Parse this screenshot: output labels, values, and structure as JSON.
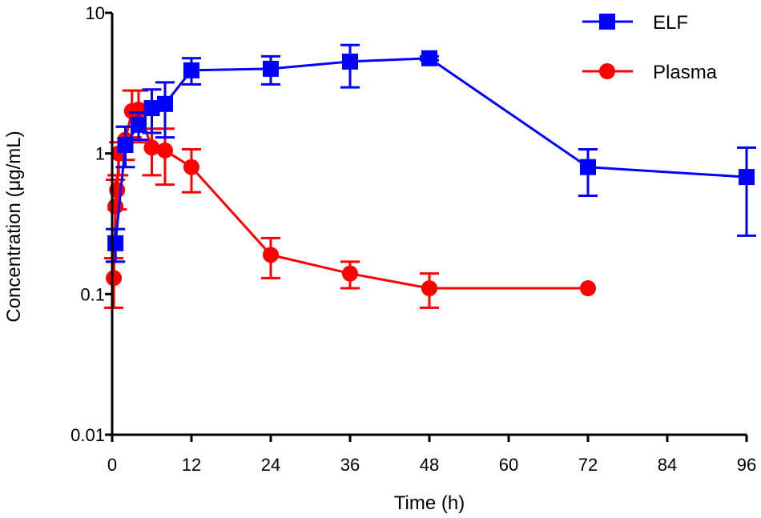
{
  "chart_data": {
    "type": "line",
    "title": "",
    "xlabel": "Time (h)",
    "ylabel": "Concentration (μg/mL)",
    "yscale": "log",
    "xlim": [
      0,
      96
    ],
    "ylim": [
      0.01,
      10
    ],
    "x_ticks": [
      0,
      12,
      24,
      36,
      48,
      60,
      72,
      84,
      96
    ],
    "x_tick_labels": [
      "0",
      "12",
      "24",
      "36",
      "48",
      "60",
      "72",
      "84",
      "96"
    ],
    "y_ticks": [
      0.01,
      0.1,
      1,
      10
    ],
    "y_tick_labels": [
      "0.01",
      "0.1",
      "1",
      "10"
    ],
    "legend_position": "top-right",
    "series": [
      {
        "name": "ELF",
        "color": "#0000ff",
        "marker": "square",
        "points": [
          {
            "x": 0.5,
            "y": 0.23,
            "lo": 0.17,
            "hi": 0.29
          },
          {
            "x": 2,
            "y": 1.15,
            "lo": 0.8,
            "hi": 1.55
          },
          {
            "x": 4,
            "y": 1.6,
            "lo": 1.25,
            "hi": 1.95
          },
          {
            "x": 6,
            "y": 2.1,
            "lo": 1.4,
            "hi": 2.85
          },
          {
            "x": 8,
            "y": 2.25,
            "lo": 1.3,
            "hi": 3.2
          },
          {
            "x": 12,
            "y": 3.9,
            "lo": 3.1,
            "hi": 4.75
          },
          {
            "x": 24,
            "y": 4.0,
            "lo": 3.1,
            "hi": 4.9
          },
          {
            "x": 36,
            "y": 4.5,
            "lo": 2.95,
            "hi": 5.9
          },
          {
            "x": 48,
            "y": 4.75,
            "lo": 4.6,
            "hi": 4.9
          },
          {
            "x": 72,
            "y": 0.8,
            "lo": 0.5,
            "hi": 1.07
          },
          {
            "x": 96,
            "y": 0.68,
            "lo": 0.26,
            "hi": 1.1
          }
        ]
      },
      {
        "name": "Plasma",
        "color": "#ff0000",
        "marker": "circle",
        "points": [
          {
            "x": 0.25,
            "y": 0.13,
            "lo": 0.08,
            "hi": 0.18
          },
          {
            "x": 0.5,
            "y": 0.42,
            "lo": 0.17,
            "hi": 0.65
          },
          {
            "x": 0.75,
            "y": 0.55,
            "lo": 0.4,
            "hi": 0.7
          },
          {
            "x": 1,
            "y": 1.0,
            "lo": 0.7,
            "hi": 1.2
          },
          {
            "x": 2,
            "y": 1.25,
            "lo": 0.9,
            "hi": 1.55
          },
          {
            "x": 3,
            "y": 2.0,
            "lo": 1.3,
            "hi": 2.8
          },
          {
            "x": 4,
            "y": 2.05,
            "lo": 1.2,
            "hi": 2.8
          },
          {
            "x": 6,
            "y": 1.1,
            "lo": 0.7,
            "hi": 1.5
          },
          {
            "x": 8,
            "y": 1.05,
            "lo": 0.6,
            "hi": 1.5
          },
          {
            "x": 12,
            "y": 0.8,
            "lo": 0.53,
            "hi": 1.07
          },
          {
            "x": 24,
            "y": 0.19,
            "lo": 0.13,
            "hi": 0.25
          },
          {
            "x": 36,
            "y": 0.14,
            "lo": 0.11,
            "hi": 0.17
          },
          {
            "x": 48,
            "y": 0.11,
            "lo": 0.08,
            "hi": 0.14
          },
          {
            "x": 72,
            "y": 0.11,
            "lo": 0.11,
            "hi": 0.11
          }
        ]
      }
    ]
  }
}
